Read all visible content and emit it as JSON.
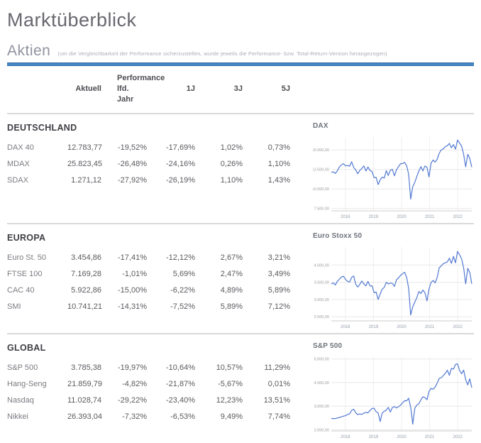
{
  "page": {
    "title": "Marktüberblick"
  },
  "section": {
    "title": "Aktien",
    "note": "(um die Vergleichbarkeit der Performance sicherzustellen, wurde jeweils die Performance- bzw. Total-Return-Version herangezogen)"
  },
  "table": {
    "header_group": "Performance",
    "columns": [
      "Aktuell",
      "lfd. Jahr",
      "1J",
      "3J",
      "5J"
    ],
    "groups": [
      {
        "name": "DEUTSCHLAND",
        "rows": [
          {
            "label": "DAX 40",
            "values": [
              "12.783,77",
              "-19,52%",
              "-17,69%",
              "1,02%",
              "0,73%"
            ]
          },
          {
            "label": "MDAX",
            "values": [
              "25.823,45",
              "-26,48%",
              "-24,16%",
              "0,26%",
              "1,10%"
            ]
          },
          {
            "label": "SDAX",
            "values": [
              "1.271,12",
              "-27,92%",
              "-26,19%",
              "1,10%",
              "1,43%"
            ]
          }
        ]
      },
      {
        "name": "EUROPA",
        "rows": [
          {
            "label": "Euro St. 50",
            "values": [
              "3.454,86",
              "-17,41%",
              "-12,12%",
              "2,67%",
              "3,21%"
            ]
          },
          {
            "label": "FTSE 100",
            "values": [
              "7.169,28",
              "-1,01%",
              "5,69%",
              "2,47%",
              "3,49%"
            ]
          },
          {
            "label": "CAC 40",
            "values": [
              "5.922,86",
              "-15,00%",
              "-6,22%",
              "4,89%",
              "5,89%"
            ]
          },
          {
            "label": "SMI",
            "values": [
              "10.741,21",
              "-14,31%",
              "-7,52%",
              "5,89%",
              "7,12%"
            ]
          }
        ]
      },
      {
        "name": "GLOBAL",
        "rows": [
          {
            "label": "S&P 500",
            "values": [
              "3.785,38",
              "-19,97%",
              "-10,64%",
              "10,57%",
              "11,29%"
            ]
          },
          {
            "label": "Hang-Seng",
            "values": [
              "21.859,79",
              "-4,82%",
              "-21,87%",
              "-5,67%",
              "0,01%"
            ]
          },
          {
            "label": "Nasdaq",
            "values": [
              "11.028,74",
              "-29,22%",
              "-23,40%",
              "12,23%",
              "13,51%"
            ]
          },
          {
            "label": "Nikkei",
            "values": [
              "26.393,04",
              "-7,32%",
              "-6,53%",
              "9,49%",
              "7,74%"
            ]
          }
        ]
      }
    ]
  },
  "colors": {
    "accent_blue": "#4688c4",
    "chart_line": "#5279d2",
    "grid_line": "#e8e8e8",
    "axis_text": "#9b9ba1"
  },
  "chart_data": [
    {
      "type": "line",
      "title": "DAX",
      "x_range": [
        2017.5,
        2022.5
      ],
      "x_tick_labels": [
        "2018",
        "2019",
        "2020",
        "2021",
        "2022"
      ],
      "y_ticks": [
        15000,
        12500,
        10000,
        7500
      ],
      "y_tick_labels": [
        "15.000,00",
        "12.500,00",
        "10.000,00",
        "7.500,00"
      ],
      "ylim": [
        7200,
        16650
      ],
      "legend": "none",
      "grid": true,
      "values": [
        12118,
        12210,
        11980,
        12350,
        12829,
        13100,
        13229,
        12950,
        13024,
        12918,
        13480,
        12750,
        12436,
        11950,
        12390,
        12612,
        12950,
        12306,
        12806,
        12364,
        12247,
        11447,
        11500,
        10559,
        11173,
        11515,
        11400,
        12344,
        11727,
        12399,
        12520,
        11690,
        12428,
        12867,
        13236,
        13249,
        13400,
        12982,
        11890,
        8700,
        10300,
        10862,
        11587,
        12311,
        12850,
        12313,
        12945,
        12761,
        11556,
        13291,
        13719,
        13433,
        13786,
        14569,
        15008,
        15136,
        15421,
        15531,
        15835,
        15261,
        15689,
        15100,
        16250,
        15885,
        15471,
        14461,
        12831,
        14446,
        13923,
        12784
      ]
    },
    {
      "type": "line",
      "title": "Euro Stoxx 50",
      "x_range": [
        2017.5,
        2022.5
      ],
      "x_tick_labels": [
        "2018",
        "2019",
        "2020",
        "2021",
        "2022"
      ],
      "y_ticks": [
        4000,
        3500,
        3000,
        2500
      ],
      "y_tick_labels": [
        "4.000,00",
        "3.500,00",
        "3.000,00",
        "2.500,00"
      ],
      "ylim": [
        2380,
        4520
      ],
      "legend": "none",
      "grid": true,
      "values": [
        3449,
        3480,
        3421,
        3530,
        3595,
        3650,
        3674,
        3580,
        3528,
        3504,
        3640,
        3680,
        3439,
        3362,
        3440,
        3537,
        3450,
        3396,
        3525,
        3393,
        3399,
        3197,
        3220,
        3001,
        3160,
        3298,
        3352,
        3500,
        3450,
        3474,
        3467,
        3380,
        3569,
        3624,
        3703,
        3745,
        3790,
        3641,
        3329,
        2550,
        2790,
        2928,
        3050,
        3234,
        3174,
        3273,
        3194,
        2958,
        3310,
        3493,
        3553,
        3481,
        3636,
        3919,
        3975,
        4039,
        4064,
        4089,
        4196,
        4048,
        4251,
        4063,
        4392,
        4298,
        4175,
        3924,
        3455,
        3902,
        3789,
        3455
      ]
    },
    {
      "type": "line",
      "title": "S&P 500",
      "x_range": [
        2017.5,
        2022.5
      ],
      "x_tick_labels": [
        "2018",
        "2019",
        "2020",
        "2021",
        "2022"
      ],
      "y_ticks": [
        5000,
        4000,
        3000,
        2000
      ],
      "y_tick_labels": [
        "5.000,00",
        "4.000,00",
        "3.000,00",
        "2.000,00"
      ],
      "ylim": [
        1950,
        5080
      ],
      "legend": "none",
      "grid": true,
      "values": [
        2470,
        2478,
        2472,
        2500,
        2519,
        2550,
        2575,
        2600,
        2648,
        2674,
        2824,
        2872,
        2714,
        2641,
        2670,
        2648,
        2705,
        2735,
        2718,
        2816,
        2902,
        2914,
        2767,
        2712,
        2351,
        2704,
        2784,
        2834,
        2946,
        2752,
        2942,
        2980,
        2926,
        2977,
        3038,
        3141,
        3231,
        3226,
        3338,
        2954,
        2237,
        2912,
        3044,
        3100,
        3271,
        3397,
        3363,
        3270,
        3622,
        3756,
        3714,
        3811,
        3973,
        4181,
        4204,
        4298,
        4395,
        4523,
        4308,
        4605,
        4567,
        4766,
        4796,
        4516,
        4374,
        4530,
        4132,
        3900,
        4158,
        3785
      ]
    }
  ]
}
